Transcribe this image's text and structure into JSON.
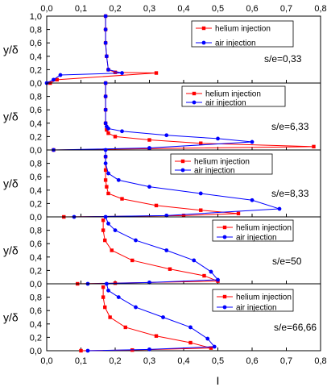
{
  "chart_data": {
    "type": "line",
    "xlabel": "I",
    "ylabel": "y/δ",
    "xlim": [
      0.0,
      0.8
    ],
    "ylim": [
      0.0,
      1.0
    ],
    "x_tick_labels": [
      "0,0",
      "0,1",
      "0,2",
      "0,3",
      "0,4",
      "0,5",
      "0,6",
      "0,7",
      "0,8"
    ],
    "y_tick_labels": [
      "0,0",
      "0,2",
      "0,4",
      "0,6",
      "0,8"
    ],
    "y_tick_labels_top_panel": [
      "0,0",
      "0,2",
      "0,4",
      "0,6",
      "0,8",
      "1,0"
    ],
    "grid": false,
    "panels": [
      {
        "annotation": "s/e=0,33",
        "legend": [
          "helium injection",
          "air injection"
        ],
        "series": [
          {
            "name": "helium injection",
            "color": "#ff0000",
            "marker": "square",
            "x": [
              0.01,
              0.03,
              0.32,
              0.2,
              0.18,
              0.175,
              0.172,
              0.172,
              0.172
            ],
            "y": [
              0.0,
              0.05,
              0.15,
              0.16,
              0.2,
              0.4,
              0.6,
              0.8,
              1.0
            ]
          },
          {
            "name": "air injection",
            "color": "#0000ff",
            "marker": "circle",
            "x": [
              0.0,
              0.02,
              0.04,
              0.22,
              0.18,
              0.175,
              0.172,
              0.172,
              0.172
            ],
            "y": [
              0.0,
              0.05,
              0.12,
              0.15,
              0.2,
              0.4,
              0.6,
              0.8,
              1.0
            ]
          }
        ]
      },
      {
        "annotation": "s/e=6,33",
        "legend": [
          "helium injection",
          "air injection"
        ],
        "series": [
          {
            "name": "helium injection",
            "color": "#ff0000",
            "marker": "square",
            "x": [
              0.02,
              0.3,
              0.78,
              0.45,
              0.3,
              0.2,
              0.18,
              0.175,
              0.172,
              0.172,
              0.172,
              0.172
            ],
            "y": [
              0.0,
              0.02,
              0.05,
              0.1,
              0.15,
              0.2,
              0.25,
              0.3,
              0.4,
              0.6,
              0.8,
              1.0
            ]
          },
          {
            "name": "air injection",
            "color": "#0000ff",
            "marker": "circle",
            "x": [
              0.02,
              0.3,
              0.6,
              0.5,
              0.35,
              0.22,
              0.18,
              0.175,
              0.172,
              0.172,
              0.172,
              0.172
            ],
            "y": [
              0.0,
              0.03,
              0.12,
              0.17,
              0.22,
              0.28,
              0.32,
              0.35,
              0.4,
              0.6,
              0.8,
              1.0
            ]
          }
        ]
      },
      {
        "annotation": "s/e=8,33",
        "legend": [
          "helium injection",
          "air injection"
        ],
        "series": [
          {
            "name": "helium injection",
            "color": "#ff0000",
            "marker": "square",
            "x": [
              0.05,
              0.4,
              0.56,
              0.45,
              0.32,
              0.22,
              0.18,
              0.175,
              0.172,
              0.172,
              0.172
            ],
            "y": [
              0.0,
              0.02,
              0.05,
              0.1,
              0.17,
              0.27,
              0.35,
              0.45,
              0.55,
              0.7,
              0.9
            ]
          },
          {
            "name": "air injection",
            "color": "#0000ff",
            "marker": "circle",
            "x": [
              0.08,
              0.35,
              0.68,
              0.6,
              0.45,
              0.3,
              0.21,
              0.18,
              0.172,
              0.172,
              0.172
            ],
            "y": [
              0.0,
              0.02,
              0.12,
              0.25,
              0.35,
              0.45,
              0.55,
              0.65,
              0.8,
              0.9,
              1.0
            ]
          }
        ]
      },
      {
        "annotation": "s/e=50",
        "legend": [
          "helium injection",
          "air injection"
        ],
        "series": [
          {
            "name": "helium injection",
            "color": "#ff0000",
            "marker": "square",
            "x": [
              0.09,
              0.2,
              0.5,
              0.46,
              0.36,
              0.25,
              0.19,
              0.17,
              0.165,
              0.165
            ],
            "y": [
              0.0,
              0.01,
              0.04,
              0.12,
              0.22,
              0.35,
              0.5,
              0.65,
              0.8,
              0.95
            ]
          },
          {
            "name": "air injection",
            "color": "#0000ff",
            "marker": "circle",
            "x": [
              0.12,
              0.3,
              0.5,
              0.48,
              0.43,
              0.35,
              0.26,
              0.2,
              0.18,
              0.172
            ],
            "y": [
              0.0,
              0.02,
              0.06,
              0.18,
              0.35,
              0.5,
              0.65,
              0.8,
              0.9,
              1.0
            ]
          }
        ]
      },
      {
        "annotation": "s/e=66,66",
        "legend": [
          "helium injection",
          "air injection"
        ],
        "series": [
          {
            "name": "helium injection",
            "color": "#ff0000",
            "marker": "square",
            "x": [
              0.1,
              0.25,
              0.48,
              0.42,
              0.32,
              0.23,
              0.185,
              0.17,
              0.165,
              0.165
            ],
            "y": [
              0.0,
              0.01,
              0.04,
              0.12,
              0.22,
              0.35,
              0.5,
              0.65,
              0.8,
              0.95
            ]
          },
          {
            "name": "air injection",
            "color": "#0000ff",
            "marker": "circle",
            "x": [
              0.12,
              0.3,
              0.49,
              0.47,
              0.42,
              0.34,
              0.26,
              0.21,
              0.18,
              0.175
            ],
            "y": [
              0.0,
              0.02,
              0.06,
              0.18,
              0.35,
              0.5,
              0.65,
              0.8,
              0.9,
              1.0
            ]
          }
        ]
      }
    ]
  }
}
